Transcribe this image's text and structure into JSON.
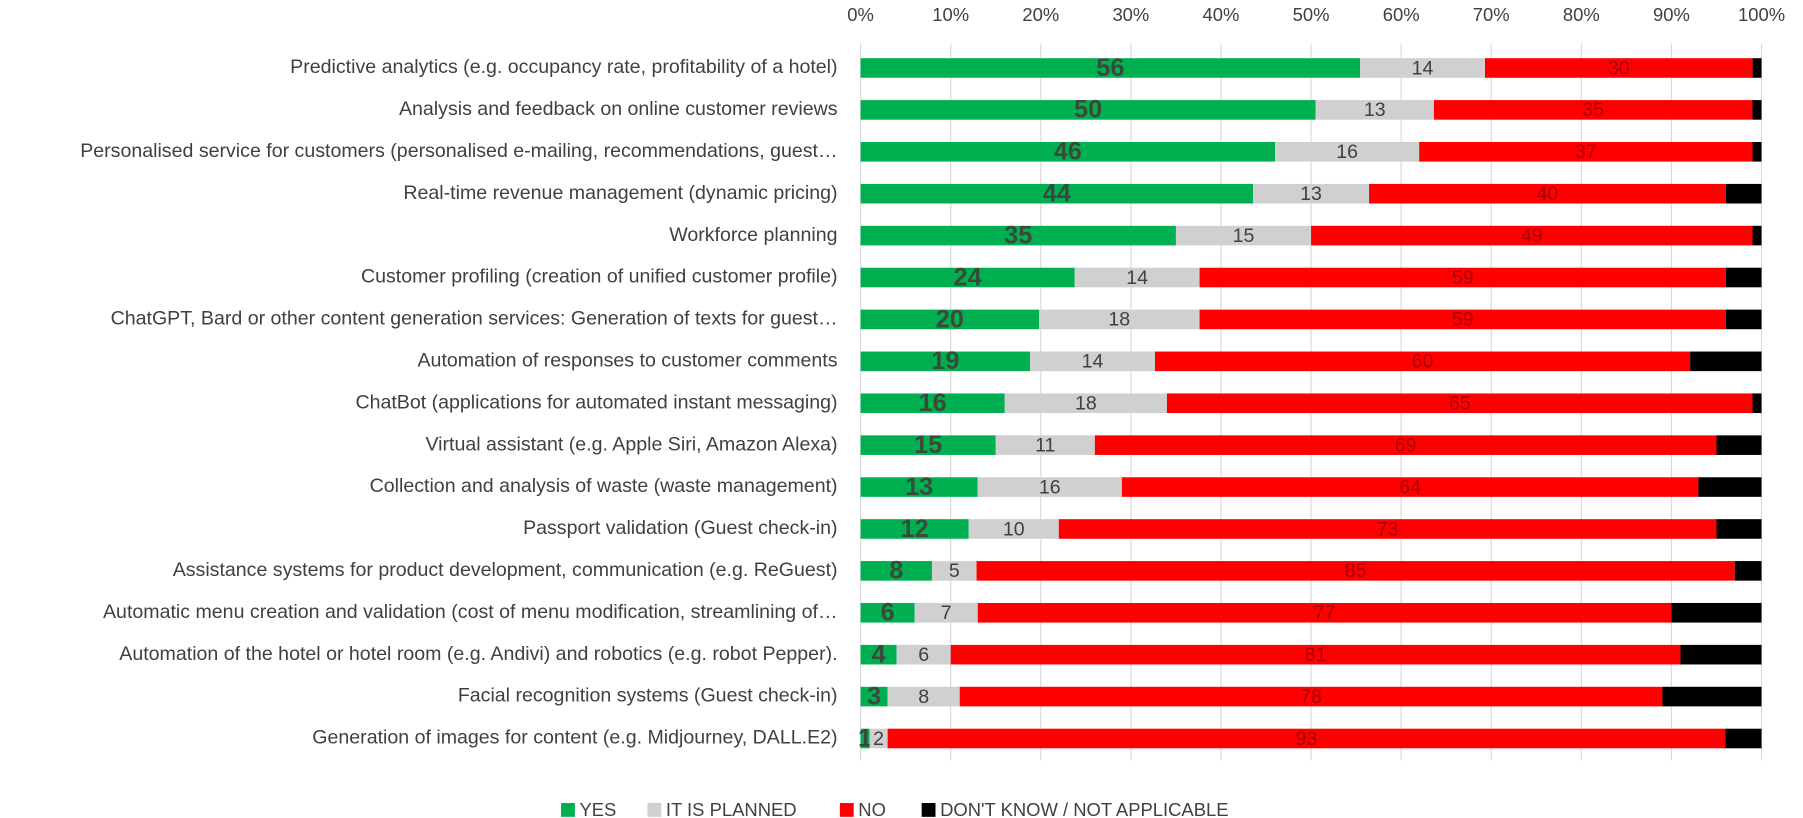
{
  "chart_data": {
    "type": "bar",
    "orientation": "horizontal",
    "stacked": "percent",
    "categories": [
      "Predictive analytics (e.g. occupancy rate, profitability of a hotel)",
      "Analysis and feedback on online customer reviews",
      "Personalised service for customers (personalised e-mailing, recommendations, guest…",
      "Real-time revenue management (dynamic pricing)",
      "Workforce planning",
      "Customer profiling (creation of unified customer profile)",
      "ChatGPT, Bard or other content generation services: Generation of texts for guest…",
      "Automation of responses to customer comments",
      "ChatBot (applications for automated instant messaging)",
      "Virtual assistant (e.g. Apple Siri, Amazon Alexa)",
      "Collection and analysis of waste (waste management)",
      "Passport validation (Guest check-in)",
      "Assistance systems for product development, communication (e.g. ReGuest)",
      "Automatic menu creation and validation (cost of menu modification, streamlining of…",
      "Automation of the hotel or hotel room (e.g. Andivi) and robotics (e.g. robot Pepper).",
      "Facial recognition systems (Guest check-in)",
      "Generation of images for content (e.g. Midjourney, DALL.E2)"
    ],
    "series": [
      {
        "name": "YES",
        "color": "#00b050",
        "values": [
          56,
          50,
          46,
          44,
          35,
          24,
          20,
          19,
          16,
          15,
          13,
          12,
          8,
          6,
          4,
          3,
          1
        ]
      },
      {
        "name": "IT IS PLANNED",
        "color": "#d0d0d0",
        "values": [
          14,
          13,
          16,
          13,
          15,
          14,
          18,
          14,
          18,
          11,
          16,
          10,
          5,
          7,
          6,
          8,
          2
        ]
      },
      {
        "name": "NO",
        "color": "#ff0000",
        "values": [
          30,
          35,
          37,
          40,
          49,
          59,
          59,
          60,
          65,
          69,
          64,
          73,
          85,
          77,
          81,
          78,
          93
        ]
      },
      {
        "name": "DON'T KNOW / NOT APPLICABLE",
        "color": "#000000",
        "values": [
          1,
          1,
          1,
          4,
          1,
          4,
          4,
          8,
          1,
          5,
          7,
          5,
          3,
          10,
          9,
          11,
          4
        ]
      }
    ],
    "xlim": [
      0,
      100
    ],
    "xticks": [
      {
        "value": 0,
        "label": "0%"
      },
      {
        "value": 10,
        "label": "10%"
      },
      {
        "value": 20,
        "label": "20%"
      },
      {
        "value": 30,
        "label": "30%"
      },
      {
        "value": 40,
        "label": "40%"
      },
      {
        "value": 50,
        "label": "50%"
      },
      {
        "value": 60,
        "label": "60%"
      },
      {
        "value": 70,
        "label": "70%"
      },
      {
        "value": 80,
        "label": "80%"
      },
      {
        "value": 90,
        "label": "90%"
      },
      {
        "value": 100,
        "label": "100%"
      }
    ],
    "grid": true,
    "legend": "bottom"
  }
}
